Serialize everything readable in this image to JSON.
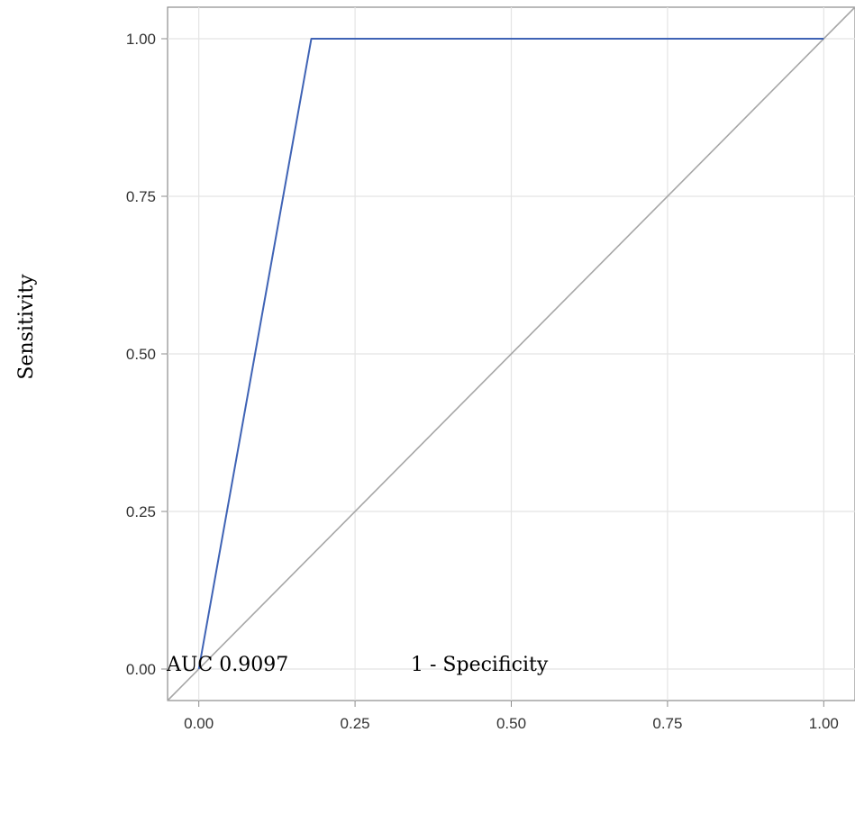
{
  "chart_data": {
    "type": "line",
    "title": "",
    "xlabel": "1 - Specificity",
    "ylabel": "Sensitivity",
    "xlim": [
      -0.05,
      1.05
    ],
    "ylim": [
      -0.05,
      1.05
    ],
    "x_ticks": [
      "0.00",
      "0.25",
      "0.50",
      "0.75",
      "1.00"
    ],
    "y_ticks": [
      "0.00",
      "0.25",
      "0.50",
      "0.75",
      "1.00"
    ],
    "grid": true,
    "series": [
      {
        "x": [
          0.0,
          0.18,
          1.0
        ],
        "y": [
          0.0,
          1.0,
          1.0
        ],
        "color": "#3f63b5"
      },
      {
        "x": [
          -0.05,
          1.05
        ],
        "y": [
          -0.05,
          1.05
        ],
        "color": "#a6a6a6"
      }
    ],
    "annotation": "AUC 0.9097"
  }
}
